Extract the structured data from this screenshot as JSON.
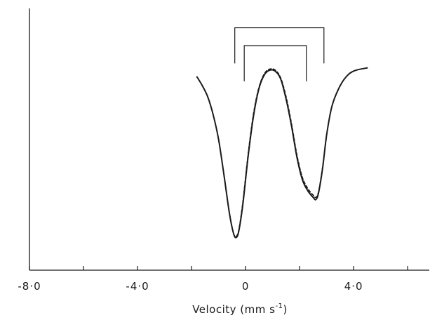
{
  "chart_data": {
    "type": "line",
    "title": "",
    "xlabel": "Velocity (mm  s",
    "xlabel_superscript": "-1",
    "xlabel_close": ")",
    "ylabel": "",
    "xlim": [
      -8.0,
      6.8
    ],
    "ylim": [
      0.0,
      1.0
    ],
    "y_axis_visible": true,
    "y_ticks_labeled": false,
    "x_ticks": [
      {
        "value": -8.0,
        "label": "-8·0"
      },
      {
        "value": -6.0,
        "label": ""
      },
      {
        "value": -4.0,
        "label": "-4·0"
      },
      {
        "value": -2.0,
        "label": ""
      },
      {
        "value": 0.0,
        "label": "0"
      },
      {
        "value": 2.0,
        "label": ""
      },
      {
        "value": 4.0,
        "label": "4·0"
      },
      {
        "value": 6.0,
        "label": ""
      }
    ],
    "grid": false,
    "legend": "none",
    "series": [
      {
        "style": "solid",
        "color": "#1a1a1a",
        "x": [
          -1.8,
          -1.6,
          -1.4,
          -1.2,
          -1.0,
          -0.8,
          -0.6,
          -0.45,
          -0.35,
          -0.25,
          -0.1,
          0.1,
          0.3,
          0.5,
          0.7,
          0.9,
          1.1,
          1.3,
          1.5,
          1.7,
          1.9,
          2.1,
          2.3,
          2.5,
          2.6,
          2.7,
          2.85,
          3.0,
          3.2,
          3.5,
          3.8,
          4.1,
          4.5
        ],
        "values": [
          0.75,
          0.71,
          0.66,
          0.58,
          0.47,
          0.31,
          0.14,
          0.05,
          0.03,
          0.06,
          0.18,
          0.4,
          0.58,
          0.7,
          0.76,
          0.78,
          0.775,
          0.74,
          0.65,
          0.53,
          0.39,
          0.29,
          0.24,
          0.21,
          0.2,
          0.23,
          0.34,
          0.49,
          0.62,
          0.71,
          0.76,
          0.78,
          0.79
        ]
      },
      {
        "style": "dashed",
        "color": "#1a1a1a",
        "x": [
          -0.8,
          -0.6,
          -0.45,
          -0.35,
          -0.25,
          -0.1,
          0.1,
          0.3,
          0.5,
          0.7,
          0.9,
          1.1,
          1.3,
          1.5,
          1.7,
          1.9,
          2.1,
          2.3,
          2.5,
          2.6,
          2.7,
          2.85,
          3.0
        ],
        "values": [
          0.31,
          0.14,
          0.05,
          0.035,
          0.065,
          0.19,
          0.41,
          0.59,
          0.705,
          0.765,
          0.785,
          0.78,
          0.745,
          0.66,
          0.54,
          0.4,
          0.3,
          0.25,
          0.22,
          0.21,
          0.235,
          0.345,
          0.49
        ]
      }
    ],
    "annotations": [
      {
        "type": "bracket",
        "x_left": -0.4,
        "x_right": 2.9,
        "y_top": 0.97,
        "y_bottom": 0.81
      },
      {
        "type": "bracket",
        "x_left": -0.05,
        "x_right": 2.25,
        "y_top": 0.89,
        "y_bottom": 0.73
      }
    ]
  }
}
